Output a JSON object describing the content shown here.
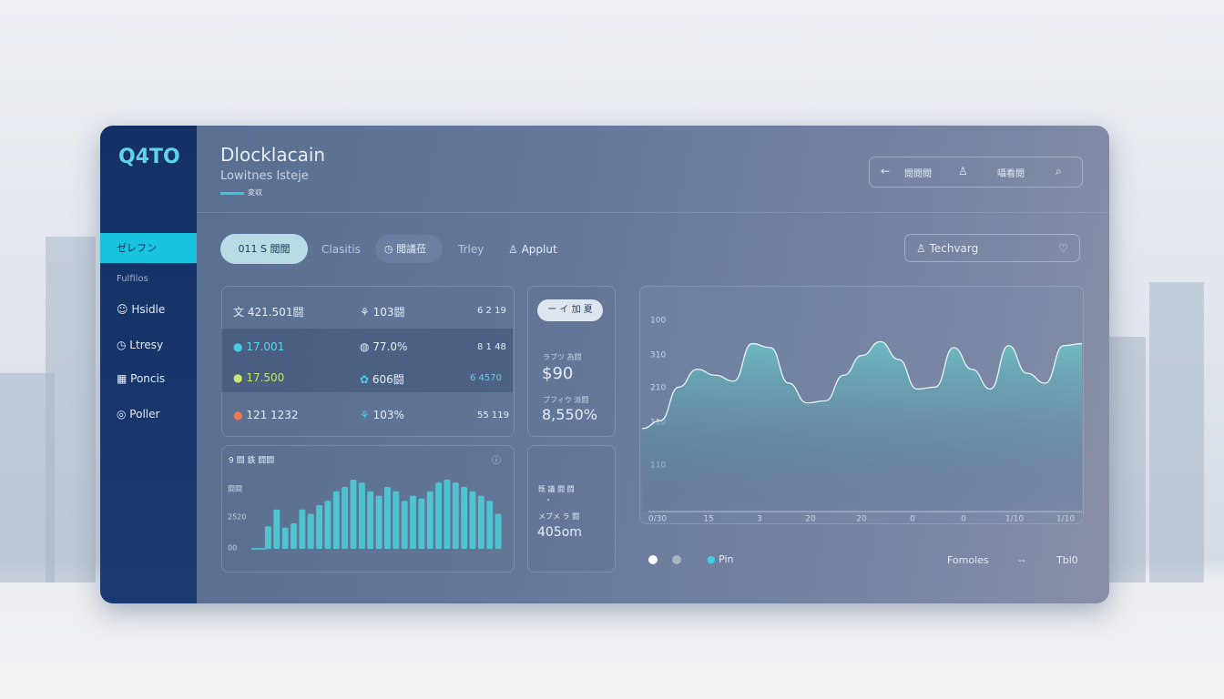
{
  "sidebar": {
    "logo": "Q4TO",
    "items": [
      "ゼレフン",
      "Fulfilos",
      "Hsidle",
      "Ltresy",
      "Poncis",
      "Poller"
    ]
  },
  "header": {
    "title": "Dlocklacain",
    "subtitle": "Lowitnes Isteje",
    "tag": "変収",
    "buttons": [
      "閲閲閲",
      "囁看閲"
    ]
  },
  "tabs": [
    "011 S 閲閲",
    "Clasitis",
    "閲議莅",
    "Trley",
    "Applut"
  ],
  "search": "Techvarg",
  "table": {
    "rows": [
      [
        "421.501闘",
        "103闘",
        "6 2 19"
      ],
      [
        "17.001",
        "77.0%",
        "8 1 48"
      ],
      [
        "17.500",
        "606闘",
        "6 4570"
      ],
      [
        "121 1232",
        "103%",
        "55 119"
      ]
    ]
  },
  "stat_card": {
    "button": "ー イ 加 夏",
    "items": [
      {
        "label": "ラブツ 為闘",
        "value": "$90"
      },
      {
        "label": "ブフィウ 派闘",
        "value": "8,550%"
      }
    ]
  },
  "info_card": {
    "label": "既 議 闘 闘",
    "dot": "・",
    "sub": "メブメ ラ 闘",
    "value": "405om"
  },
  "legend": {
    "items": [
      "Pin",
      "Fomoles",
      "--",
      "Tbl0"
    ]
  },
  "chart_data": [
    {
      "type": "bar",
      "title": "9 闘 鉄 闘闘",
      "color": "#4fc3d0",
      "ylim": [
        0,
        100
      ],
      "y_labels": [
        "闘闘",
        "2520",
        "00"
      ],
      "values": [
        31,
        54,
        29,
        35,
        54,
        48,
        60,
        66,
        79,
        85,
        95,
        91,
        79,
        73,
        85,
        79,
        66,
        73,
        69,
        79,
        91,
        95,
        91,
        85,
        79,
        73,
        66,
        48
      ]
    },
    {
      "type": "area",
      "color": "#5fb8bf",
      "ylim": [
        0,
        100
      ],
      "y_labels": [
        "100",
        "310",
        "210",
        "110",
        "110"
      ],
      "x_labels": [
        "0/30",
        "15",
        "3",
        "20",
        "20",
        "0",
        "0",
        "1/10",
        "1/10"
      ],
      "values": [
        42,
        46,
        63,
        72,
        69,
        66,
        85,
        83,
        65,
        55,
        56,
        69,
        79,
        86,
        77,
        62,
        63,
        83,
        72,
        62,
        84,
        70,
        65,
        84,
        85
      ]
    }
  ]
}
